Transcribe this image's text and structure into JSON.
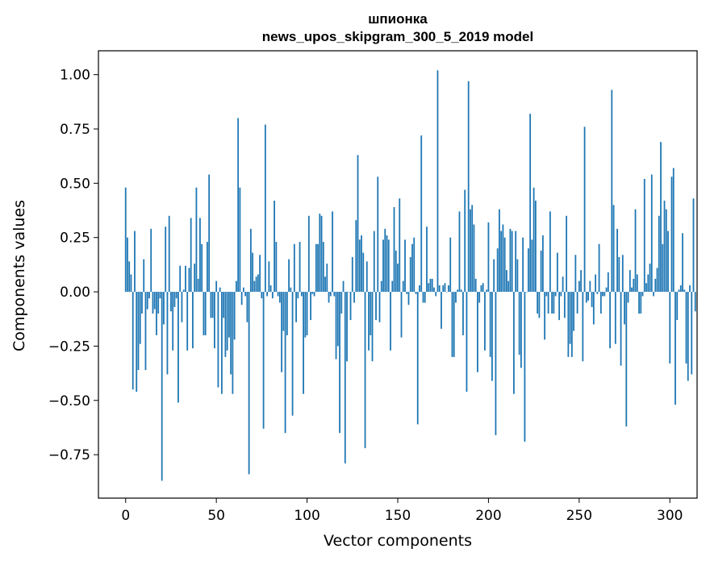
{
  "chart_data": {
    "type": "bar",
    "title": "шпионка",
    "subtitle": "news_upos_skipgram_300_5_2019 model",
    "xlabel": "Vector components",
    "ylabel": "Components values",
    "xlim": [
      -15,
      315
    ],
    "ylim": [
      -0.95,
      1.11
    ],
    "xticks": [
      0,
      50,
      100,
      150,
      200,
      250,
      300
    ],
    "yticks": [
      -0.75,
      -0.5,
      -0.25,
      0.0,
      0.25,
      0.5,
      0.75,
      1.0
    ],
    "xtick_labels": [
      "0",
      "50",
      "100",
      "150",
      "200",
      "250",
      "300"
    ],
    "ytick_labels": [
      "−0.75",
      "−0.50",
      "−0.25",
      "0.00",
      "0.25",
      "0.50",
      "0.75",
      "1.00"
    ],
    "bar_color": "#1f77b4",
    "grid": false,
    "x_start": 0,
    "values": [
      0.48,
      0.25,
      0.14,
      0.08,
      -0.45,
      0.28,
      -0.46,
      -0.36,
      -0.24,
      -0.1,
      0.15,
      -0.36,
      -0.08,
      -0.03,
      0.29,
      -0.1,
      -0.08,
      -0.2,
      -0.1,
      -0.03,
      -0.87,
      -0.15,
      0.3,
      -0.38,
      0.35,
      -0.09,
      -0.27,
      -0.07,
      -0.03,
      -0.51,
      0.12,
      -0.14,
      0.01,
      0.12,
      -0.27,
      0.11,
      0.34,
      -0.26,
      0.13,
      0.48,
      0.06,
      0.34,
      0.22,
      -0.2,
      -0.2,
      0.23,
      0.54,
      -0.12,
      -0.12,
      -0.26,
      0.05,
      -0.44,
      0.02,
      -0.47,
      -0.12,
      -0.3,
      -0.27,
      -0.21,
      -0.38,
      -0.47,
      -0.22,
      0.05,
      0.8,
      0.48,
      -0.06,
      0.02,
      -0.02,
      -0.14,
      -0.84,
      0.29,
      0.18,
      0.05,
      0.07,
      0.08,
      0.17,
      -0.03,
      -0.63,
      0.77,
      -0.02,
      0.14,
      0.03,
      -0.03,
      0.42,
      0.23,
      -0.02,
      -0.05,
      -0.37,
      -0.18,
      -0.65,
      -0.2,
      0.15,
      0.02,
      -0.57,
      0.22,
      -0.14,
      -0.03,
      0.23,
      -0.02,
      -0.47,
      -0.21,
      -0.2,
      0.35,
      -0.13,
      -0.01,
      -0.02,
      0.22,
      0.22,
      0.36,
      0.35,
      0.23,
      0.07,
      0.13,
      -0.05,
      -0.02,
      0.37,
      -0.02,
      -0.31,
      -0.25,
      -0.65,
      -0.1,
      0.05,
      -0.79,
      -0.32,
      0.0,
      -0.13,
      0.16,
      -0.05,
      0.33,
      0.63,
      0.24,
      0.26,
      0.18,
      -0.72,
      0.14,
      -0.27,
      -0.2,
      -0.32,
      0.28,
      -0.13,
      0.53,
      -0.14,
      0.05,
      0.24,
      0.29,
      0.26,
      0.24,
      -0.27,
      0.05,
      0.39,
      0.19,
      0.13,
      0.43,
      -0.21,
      0.05,
      0.24,
      -0.01,
      -0.06,
      0.16,
      0.22,
      0.25,
      -0.01,
      -0.61,
      0.03,
      0.72,
      -0.05,
      -0.05,
      0.3,
      0.04,
      0.06,
      0.06,
      0.02,
      -0.02,
      1.02,
      0.03,
      -0.17,
      0.03,
      0.04,
      0.0,
      0.03,
      0.25,
      -0.3,
      -0.3,
      -0.05,
      0.01,
      0.37,
      0.01,
      -0.2,
      0.47,
      -0.46,
      0.97,
      0.38,
      0.4,
      0.31,
      0.06,
      -0.37,
      -0.05,
      0.03,
      0.04,
      -0.27,
      0.01,
      0.32,
      -0.3,
      -0.41,
      0.15,
      -0.66,
      0.2,
      0.38,
      0.28,
      0.31,
      0.25,
      0.1,
      0.05,
      0.29,
      0.28,
      -0.47,
      0.28,
      0.15,
      -0.29,
      -0.35,
      0.25,
      -0.69,
      0.0,
      0.2,
      0.82,
      0.24,
      0.48,
      0.42,
      -0.1,
      -0.12,
      0.19,
      0.26,
      -0.22,
      -0.02,
      -0.1,
      0.37,
      -0.1,
      -0.1,
      -0.02,
      0.18,
      -0.13,
      -0.02,
      0.07,
      -0.12,
      0.35,
      -0.3,
      -0.24,
      -0.3,
      -0.18,
      0.17,
      -0.1,
      0.05,
      0.1,
      -0.32,
      0.76,
      -0.05,
      -0.04,
      0.05,
      -0.07,
      -0.15,
      0.08,
      -0.01,
      0.22,
      -0.1,
      -0.02,
      -0.02,
      0.02,
      0.09,
      -0.26,
      0.93,
      0.4,
      -0.24,
      0.29,
      0.16,
      -0.34,
      0.17,
      -0.15,
      -0.62,
      -0.05,
      0.1,
      0.02,
      0.06,
      0.38,
      0.08,
      -0.1,
      -0.1,
      -0.02,
      0.52,
      0.04,
      0.08,
      0.13,
      0.54,
      -0.02,
      0.06,
      0.11,
      0.35,
      0.69,
      0.22,
      0.42,
      0.38,
      0.28,
      -0.33,
      0.53,
      0.57,
      -0.52,
      -0.13,
      0.01,
      0.03,
      0.27,
      0.01,
      -0.33,
      -0.41,
      0.03,
      -0.38,
      0.43,
      -0.09
    ]
  }
}
